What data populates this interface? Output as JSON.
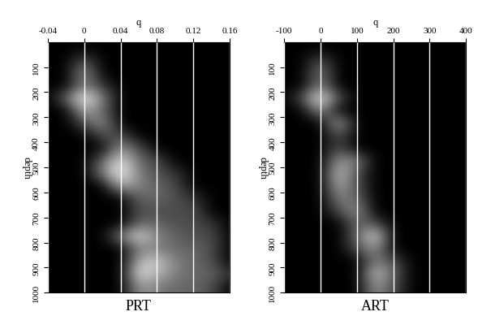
{
  "chart_data": [
    {
      "type": "heatmap",
      "title": "PRT",
      "x_label": "q",
      "y_label": "depth",
      "xlim": [
        -0.04,
        0.16
      ],
      "xticks": [
        -0.04,
        0,
        0.04,
        0.08,
        0.12,
        0.16
      ],
      "ylim": [
        1000,
        0
      ],
      "yticks": [
        100,
        200,
        300,
        400,
        500,
        600,
        700,
        800,
        900,
        1000
      ],
      "grid": true,
      "x": [
        -0.04,
        -0.02,
        0,
        0.02,
        0.04,
        0.06,
        0.08,
        0.1,
        0.12,
        0.14,
        0.16
      ],
      "y": [
        25,
        75,
        125,
        175,
        225,
        275,
        325,
        375,
        425,
        475,
        525,
        575,
        625,
        675,
        725,
        775,
        825,
        875,
        925,
        975
      ],
      "cells": [
        [
          0,
          0,
          0,
          0,
          0,
          0,
          0,
          0,
          0,
          0,
          0
        ],
        [
          0,
          0,
          0.3,
          0,
          0,
          0,
          0,
          0,
          0,
          0,
          0
        ],
        [
          0,
          0,
          0.6,
          0,
          0,
          0,
          0,
          0,
          0,
          0,
          0
        ],
        [
          0,
          0,
          0.5,
          0.2,
          0,
          0,
          0,
          0,
          0,
          0,
          0
        ],
        [
          0,
          0.4,
          1.0,
          0.5,
          0,
          0,
          0,
          0,
          0,
          0,
          0
        ],
        [
          0,
          0,
          0.7,
          0.4,
          0,
          0,
          0,
          0,
          0,
          0,
          0
        ],
        [
          0,
          0,
          0.3,
          0.6,
          0,
          0,
          0,
          0,
          0,
          0,
          0
        ],
        [
          0,
          0,
          0,
          0.3,
          0.3,
          0,
          0,
          0,
          0,
          0,
          0
        ],
        [
          0,
          0,
          0,
          0,
          0.6,
          0.3,
          0,
          0,
          0,
          0,
          0
        ],
        [
          0,
          0,
          0,
          0.4,
          0.9,
          0.4,
          0.3,
          0,
          0,
          0,
          0
        ],
        [
          0,
          0,
          0,
          0.5,
          1.0,
          0.5,
          0.3,
          0.2,
          0,
          0,
          0
        ],
        [
          0,
          0,
          0,
          0,
          0.7,
          0.5,
          0.4,
          0.3,
          0,
          0,
          0
        ],
        [
          0,
          0,
          0,
          0,
          0,
          0.4,
          0.4,
          0.3,
          0.2,
          0,
          0
        ],
        [
          0,
          0,
          0,
          0,
          0,
          0.3,
          0.3,
          0.3,
          0.3,
          0,
          0
        ],
        [
          0,
          0,
          0,
          0,
          0,
          0.4,
          0.4,
          0.3,
          0.3,
          0.2,
          0
        ],
        [
          0,
          0,
          0,
          0,
          0.5,
          0.9,
          0.5,
          0.4,
          0.3,
          0.3,
          0
        ],
        [
          0,
          0,
          0,
          0,
          0,
          0.5,
          0.5,
          0.4,
          0.4,
          0.3,
          0
        ],
        [
          0,
          0,
          0,
          0,
          0,
          0.7,
          0.8,
          0.5,
          0.4,
          0.3,
          0
        ],
        [
          0,
          0,
          0,
          0,
          0,
          0.9,
          0.7,
          0.5,
          0.4,
          0.4,
          0.2
        ],
        [
          0,
          0,
          0,
          0,
          0,
          0.6,
          0.5,
          0.4,
          0.4,
          0.3,
          0
        ]
      ]
    },
    {
      "type": "heatmap",
      "title": "ART",
      "x_label": "q",
      "y_label": "depth",
      "xlim": [
        -100,
        400
      ],
      "xticks": [
        -100,
        0,
        100,
        200,
        300,
        400
      ],
      "ylim": [
        1000,
        0
      ],
      "yticks": [
        100,
        200,
        300,
        400,
        500,
        600,
        700,
        800,
        900,
        1000
      ],
      "grid": true,
      "x": [
        -100,
        -50,
        0,
        50,
        100,
        150,
        200,
        250,
        300,
        350,
        400
      ],
      "y": [
        25,
        75,
        125,
        175,
        225,
        275,
        325,
        375,
        425,
        475,
        525,
        575,
        625,
        675,
        725,
        775,
        825,
        875,
        925,
        975
      ],
      "cells": [
        [
          0,
          0,
          0,
          0,
          0,
          0,
          0,
          0,
          0,
          0,
          0
        ],
        [
          0,
          0,
          0.3,
          0,
          0,
          0,
          0,
          0,
          0,
          0,
          0
        ],
        [
          0,
          0,
          0.5,
          0,
          0,
          0,
          0,
          0,
          0,
          0,
          0
        ],
        [
          0,
          0,
          0.5,
          0,
          0,
          0,
          0,
          0,
          0,
          0,
          0
        ],
        [
          0,
          0.3,
          1.0,
          0.3,
          0,
          0,
          0,
          0,
          0,
          0,
          0
        ],
        [
          0,
          0,
          0.6,
          0,
          0,
          0,
          0,
          0,
          0,
          0,
          0
        ],
        [
          0,
          0,
          0,
          0.7,
          0,
          0,
          0,
          0,
          0,
          0,
          0
        ],
        [
          0,
          0,
          0,
          0.3,
          0,
          0,
          0,
          0,
          0,
          0,
          0
        ],
        [
          0,
          0,
          0,
          0.3,
          0,
          0,
          0,
          0,
          0,
          0,
          0
        ],
        [
          0,
          0,
          0,
          0.6,
          0.5,
          0,
          0,
          0,
          0,
          0,
          0
        ],
        [
          0,
          0,
          0,
          0.8,
          0.3,
          0,
          0,
          0,
          0,
          0,
          0
        ],
        [
          0,
          0,
          0,
          0.7,
          0.3,
          0,
          0,
          0,
          0,
          0,
          0
        ],
        [
          0,
          0,
          0,
          0.5,
          0.4,
          0,
          0,
          0,
          0,
          0,
          0
        ],
        [
          0,
          0,
          0,
          0.3,
          0.6,
          0,
          0,
          0,
          0,
          0,
          0
        ],
        [
          0,
          0,
          0,
          0,
          0.4,
          0.3,
          0,
          0,
          0,
          0,
          0
        ],
        [
          0,
          0,
          0,
          0,
          0.4,
          0.9,
          0,
          0,
          0,
          0,
          0
        ],
        [
          0,
          0,
          0,
          0,
          0.3,
          0.6,
          0,
          0,
          0,
          0,
          0
        ],
        [
          0,
          0,
          0,
          0,
          0,
          0.5,
          0.3,
          0,
          0,
          0,
          0
        ],
        [
          0,
          0,
          0,
          0,
          0,
          0.8,
          0.4,
          0,
          0,
          0,
          0
        ],
        [
          0,
          0,
          0,
          0,
          0,
          0.6,
          0.3,
          0,
          0,
          0,
          0
        ]
      ]
    }
  ]
}
